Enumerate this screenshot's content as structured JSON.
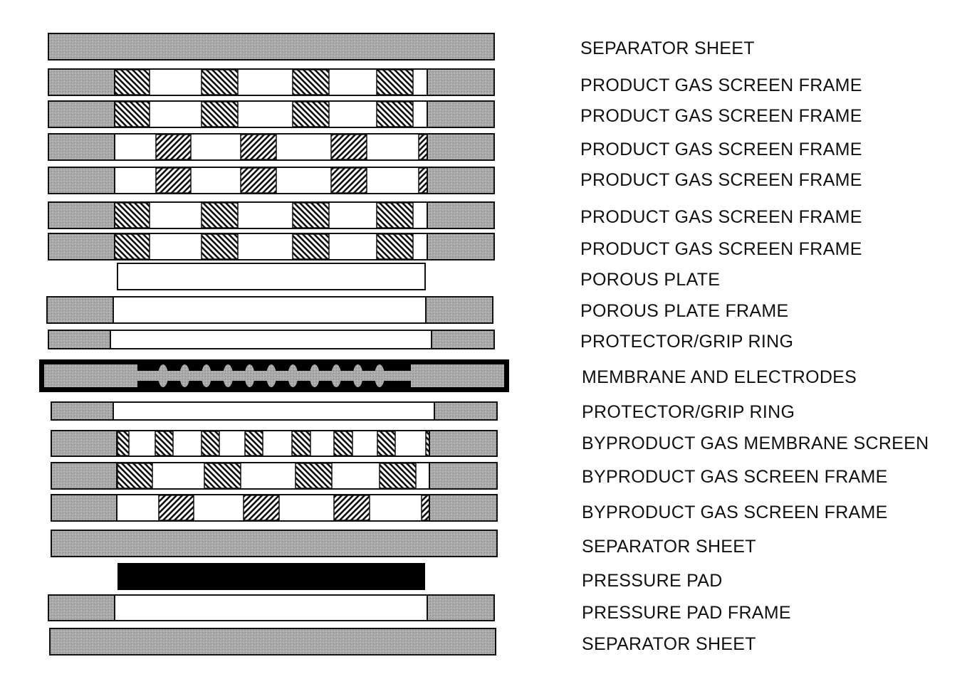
{
  "diagram": {
    "layers": [
      {
        "label": "SEPARATOR SHEET",
        "kind": "sheet"
      },
      {
        "label": "PRODUCT GAS SCREEN FRAME",
        "kind": "screen-frame",
        "hatch": "back"
      },
      {
        "label": "PRODUCT GAS SCREEN FRAME",
        "kind": "screen-frame",
        "hatch": "back"
      },
      {
        "label": "PRODUCT GAS SCREEN FRAME",
        "kind": "screen-frame",
        "hatch": "fwd"
      },
      {
        "label": "PRODUCT GAS SCREEN FRAME",
        "kind": "screen-frame",
        "hatch": "fwd"
      },
      {
        "label": "PRODUCT GAS SCREEN FRAME",
        "kind": "screen-frame",
        "hatch": "back"
      },
      {
        "label": "PRODUCT GAS SCREEN FRAME",
        "kind": "screen-frame",
        "hatch": "back"
      },
      {
        "label": "POROUS PLATE",
        "kind": "plate"
      },
      {
        "label": "POROUS PLATE FRAME",
        "kind": "frame"
      },
      {
        "label": "PROTECTOR/GRIP RING",
        "kind": "frame"
      },
      {
        "label": "MEMBRANE AND ELECTRODES",
        "kind": "membrane"
      },
      {
        "label": "PROTECTOR/GRIP RING",
        "kind": "frame"
      },
      {
        "label": "BYPRODUCT GAS MEMBRANE SCREEN",
        "kind": "membrane-screen"
      },
      {
        "label": "BYPRODUCT GAS SCREEN FRAME",
        "kind": "screen-frame",
        "hatch": "back"
      },
      {
        "label": "BYPRODUCT GAS SCREEN FRAME",
        "kind": "screen-frame",
        "hatch": "fwd"
      },
      {
        "label": "SEPARATOR SHEET",
        "kind": "sheet"
      },
      {
        "label": "PRESSURE PAD",
        "kind": "pad"
      },
      {
        "label": "PRESSURE PAD FRAME",
        "kind": "frame"
      },
      {
        "label": "SEPARATOR SHEET",
        "kind": "sheet"
      }
    ],
    "colors": {
      "stipple_fill": "#a9a9a9",
      "outline": "#111111",
      "hatch": "#111111",
      "pad": "#000000",
      "background": "#ffffff"
    }
  }
}
